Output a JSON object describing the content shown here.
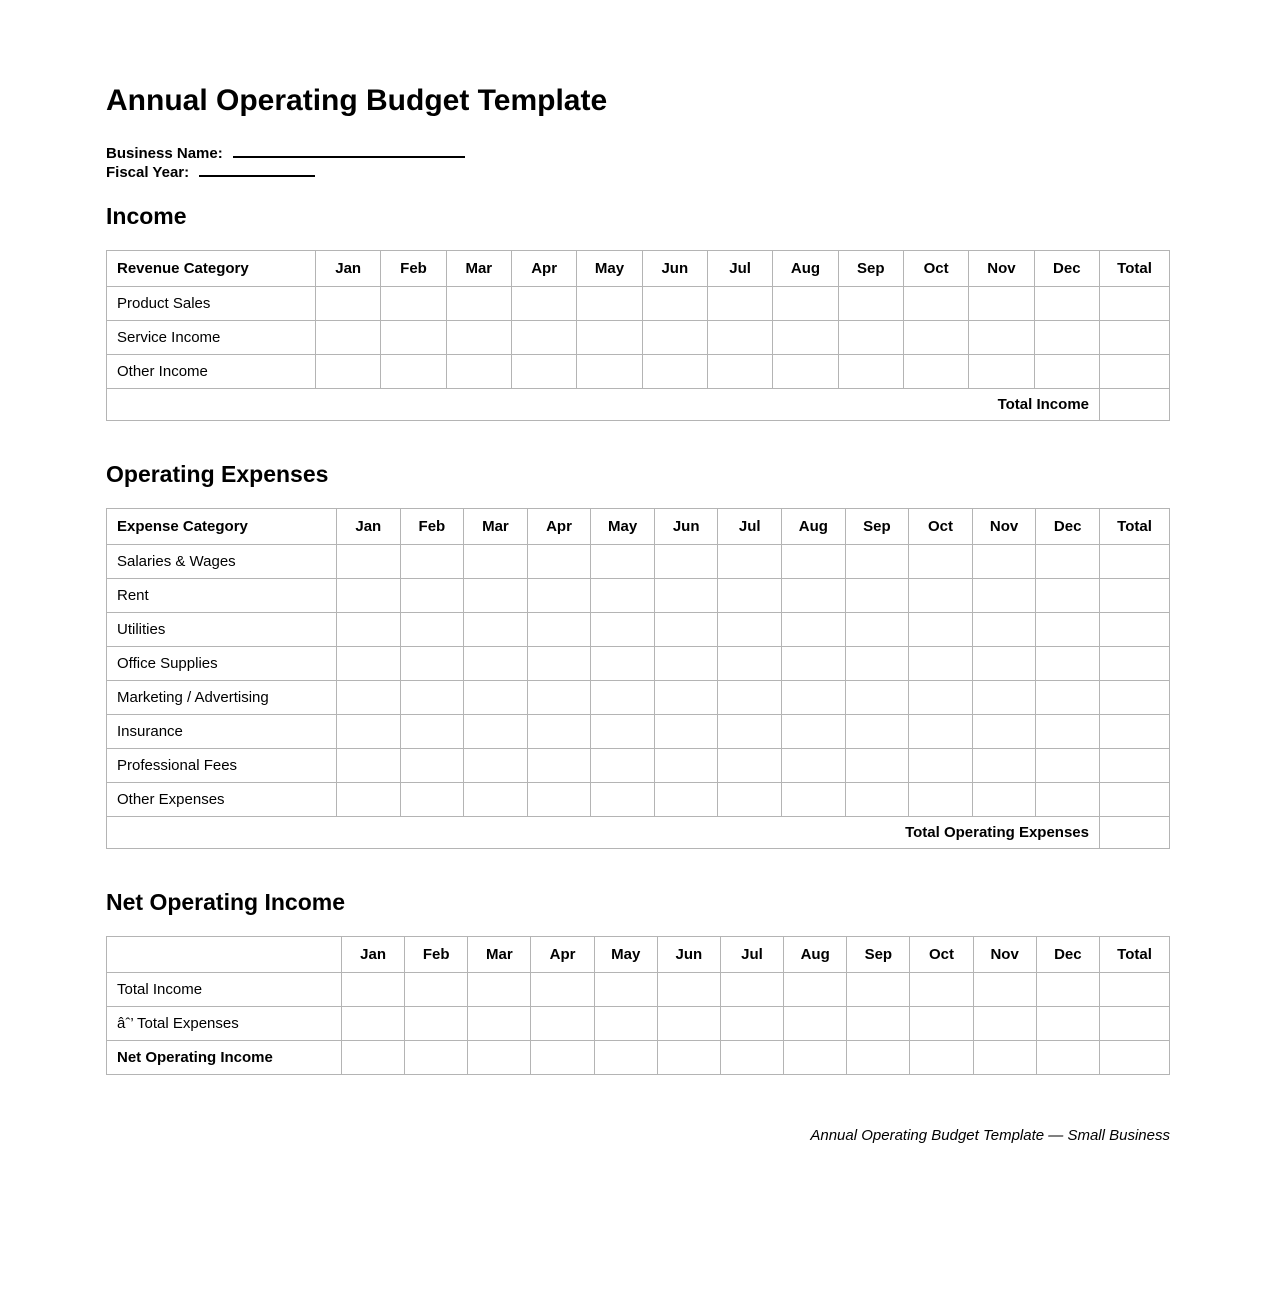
{
  "page": {
    "title": "Annual Operating Budget Template",
    "business_name_label": "Business Name:",
    "business_name_value": "",
    "fiscal_year_label": "Fiscal Year:",
    "fiscal_year_value": "",
    "footer": "Annual Operating Budget Template — Small Business"
  },
  "months": [
    "Jan",
    "Feb",
    "Mar",
    "Apr",
    "May",
    "Jun",
    "Jul",
    "Aug",
    "Sep",
    "Oct",
    "Nov",
    "Dec"
  ],
  "income": {
    "heading": "Income",
    "first_column_header": "Revenue Category",
    "total_column_header": "Total",
    "rows": [
      "Product Sales",
      "Service Income",
      "Other Income"
    ],
    "total_row_label": "Total Income"
  },
  "expenses": {
    "heading": "Operating Expenses",
    "first_column_header": "Expense Category",
    "total_column_header": "Total",
    "rows": [
      "Salaries & Wages",
      "Rent",
      "Utilities",
      "Office Supplies",
      "Marketing / Advertising",
      "Insurance",
      "Professional Fees",
      "Other Expenses"
    ],
    "total_row_label": "Total Operating Expenses"
  },
  "net": {
    "heading": "Net Operating Income",
    "first_column_header": "",
    "total_column_header": "Total",
    "rows": [
      {
        "label": "Total Income",
        "bold": false
      },
      {
        "label": "âˆ’ Total Expenses",
        "bold": false
      },
      {
        "label": "Net Operating Income",
        "bold": true
      }
    ]
  }
}
